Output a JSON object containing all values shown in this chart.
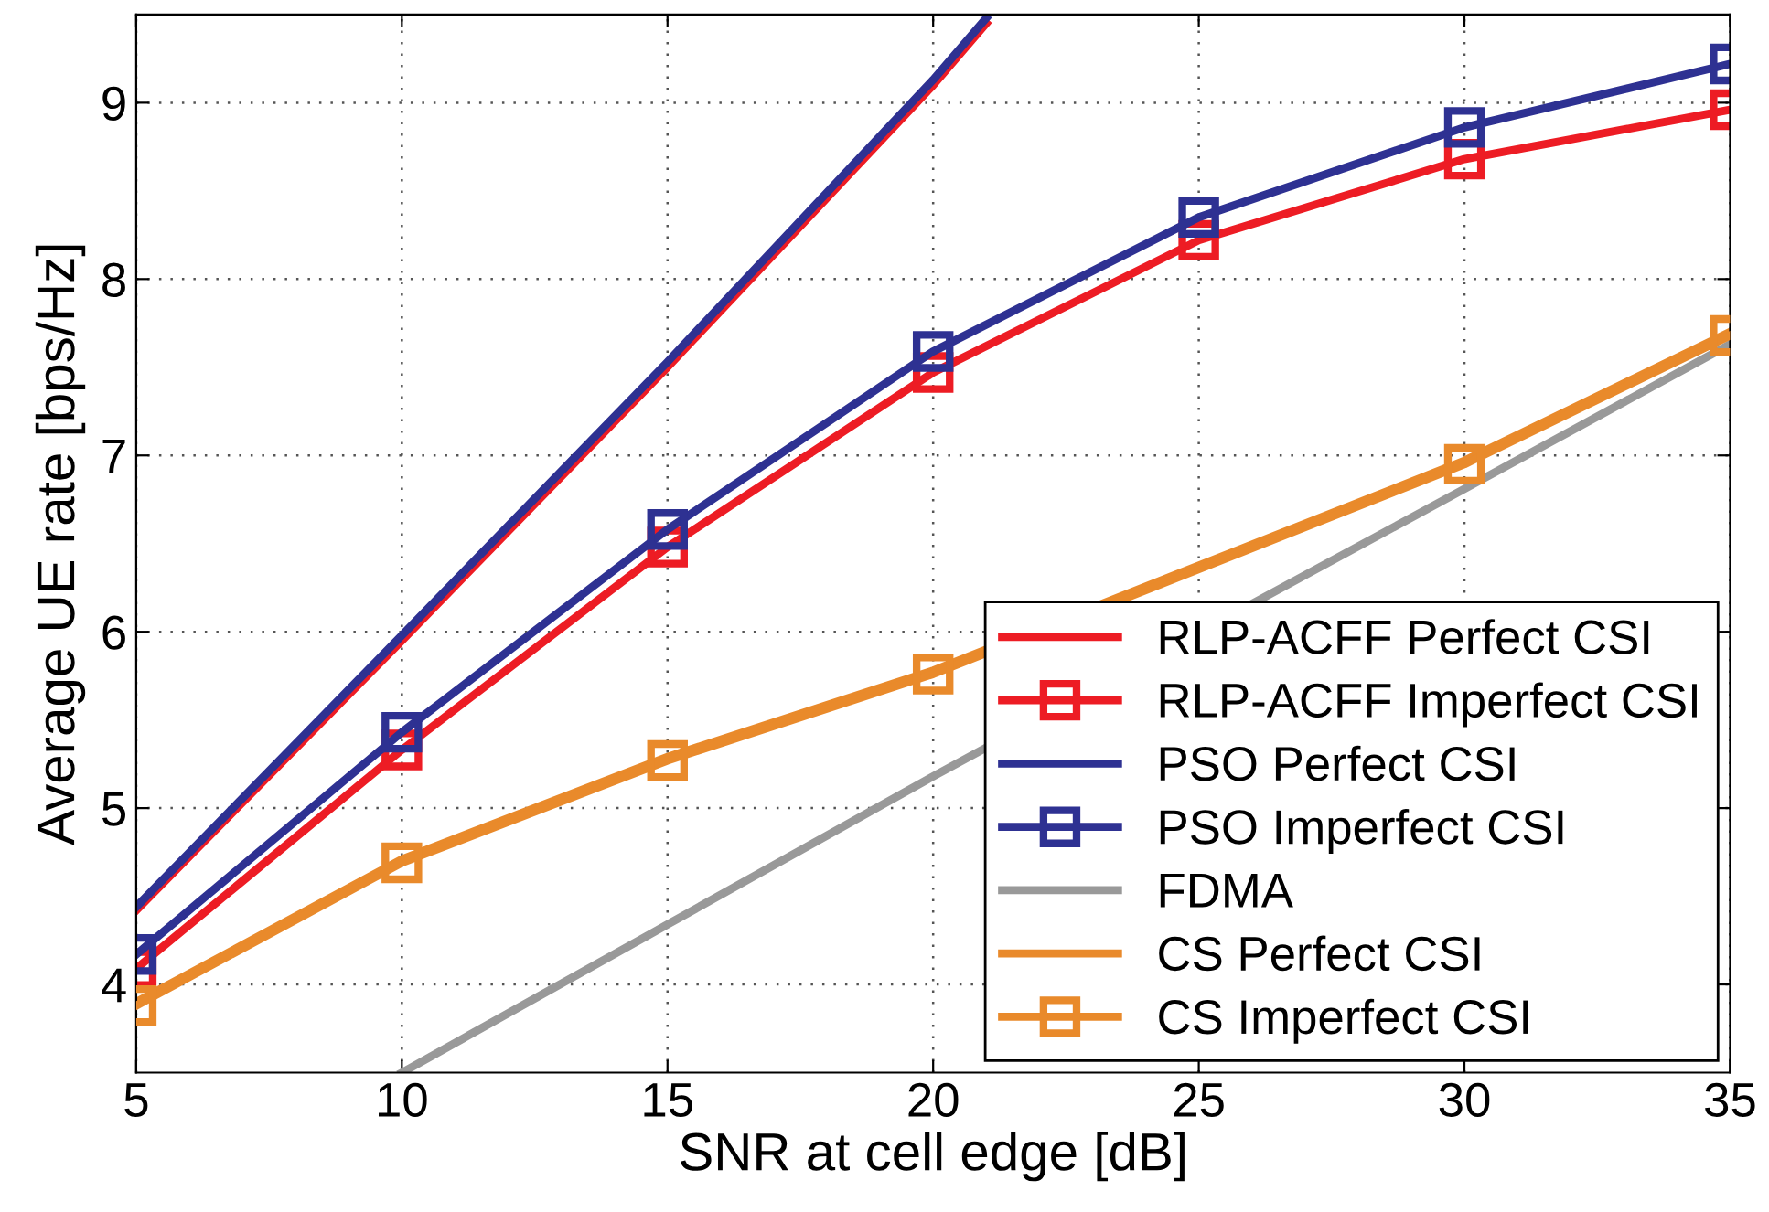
{
  "chart_data": {
    "type": "line",
    "xlabel": "SNR at cell edge [dB]",
    "ylabel": "Average UE rate [bps/Hz]",
    "xlim": [
      5,
      35
    ],
    "ylim": [
      3.5,
      9.5
    ],
    "xticks": [
      5,
      10,
      15,
      20,
      25,
      30,
      35
    ],
    "yticks": [
      4,
      5,
      6,
      7,
      8,
      9
    ],
    "grid": true,
    "legend": "bottom right",
    "line_style": "solid",
    "series": [
      {
        "name": "RLP-ACFF Perfect CSI",
        "color": "#ed1c24",
        "marker": "none",
        "x": [
          5,
          10,
          15,
          20,
          21
        ],
        "values": [
          4.42,
          5.95,
          7.5,
          9.1,
          9.45
        ]
      },
      {
        "name": "RLP-ACFF Imperfect CSI",
        "color": "#ed1c24",
        "marker": "square",
        "x": [
          5,
          10,
          15,
          20,
          25,
          30,
          35
        ],
        "values": [
          4.09,
          5.33,
          6.48,
          7.47,
          8.22,
          8.68,
          8.96
        ]
      },
      {
        "name": "PSO Perfect CSI",
        "color": "#2e3192",
        "marker": "none",
        "x": [
          5,
          10,
          15,
          20,
          21
        ],
        "values": [
          4.44,
          5.98,
          7.53,
          9.13,
          9.48
        ]
      },
      {
        "name": "PSO Imperfect CSI",
        "color": "#2e3192",
        "marker": "square",
        "x": [
          5,
          10,
          15,
          20,
          25,
          30,
          35
        ],
        "values": [
          4.17,
          5.43,
          6.58,
          7.59,
          8.35,
          8.86,
          9.22
        ]
      },
      {
        "name": "FDMA",
        "color": "#999999",
        "marker": "none",
        "x": [
          10,
          15,
          20,
          30,
          35
        ],
        "values": [
          3.5,
          4.34,
          5.18,
          6.81,
          7.63
        ]
      },
      {
        "name": "CS Perfect CSI",
        "color": "#e98a2b",
        "marker": "none",
        "x": [
          5,
          10,
          15,
          20,
          25,
          30,
          35
        ],
        "values": [
          3.9,
          4.71,
          5.29,
          5.78,
          null,
          6.97,
          7.7
        ]
      },
      {
        "name": "CS Imperfect CSI",
        "color": "#e98a2b",
        "marker": "square",
        "x": [
          5,
          10,
          15,
          20,
          25,
          30,
          35
        ],
        "values": [
          3.88,
          4.69,
          5.27,
          5.76,
          null,
          6.95,
          7.68
        ]
      }
    ]
  }
}
